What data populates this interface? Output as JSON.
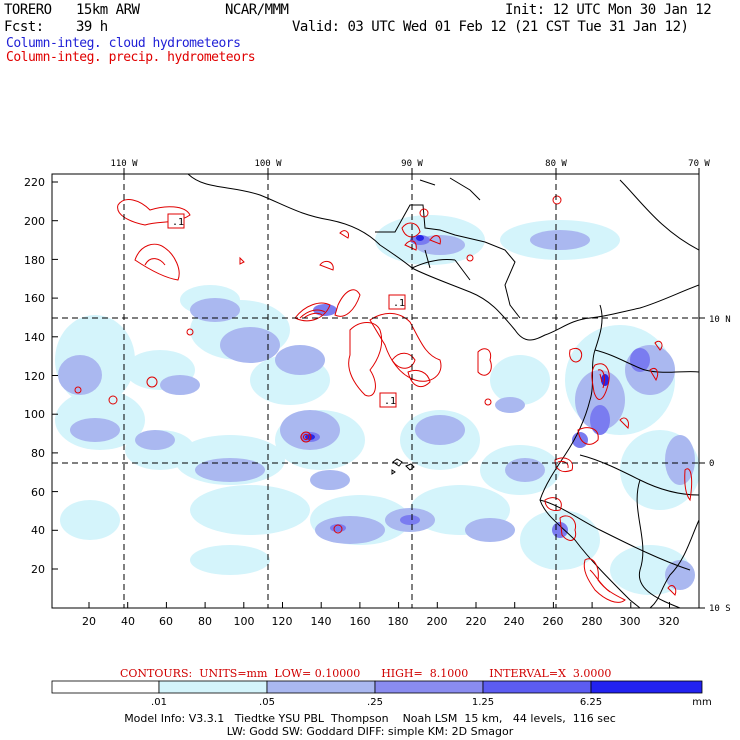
{
  "header": {
    "model": "TORERO",
    "resolution": "15km ARW",
    "center": "NCAR/MMM",
    "init": "Init: 12 UTC Mon 30 Jan 12",
    "fcst_label": "Fcst:",
    "fcst_hours": "39 h",
    "valid": "Valid: 03 UTC Wed 01 Feb 12 (21 CST Tue 31 Jan 12)"
  },
  "legend": {
    "cloud": "Column-integ. cloud hydrometeors",
    "precip": "Column-integ. precip. hydrometeors"
  },
  "map": {
    "lon_labels": [
      "110 W",
      "100 W",
      "90 W",
      "80 W",
      "70 W"
    ],
    "lat_labels": [
      "10 N",
      "0",
      "10 S"
    ],
    "y_ticks": [
      "220",
      "200",
      "180",
      "160",
      "140",
      "120",
      "100",
      "80",
      "60",
      "40",
      "20"
    ],
    "x_ticks": [
      "20",
      "40",
      "60",
      "80",
      "100",
      "120",
      "140",
      "160",
      "180",
      "200",
      "220",
      "240",
      "260",
      "280",
      "300",
      "320"
    ],
    "contour_labels": [
      ".1",
      ".1",
      ".1"
    ]
  },
  "contour_info": {
    "text": "CONTOURS:  UNITS=mm  LOW= 0.10000      HIGH=  8.1000      INTERVAL=X  3.0000"
  },
  "colorbar": {
    "labels": [
      ".01",
      ".05",
      ".25",
      "1.25",
      "6.25"
    ],
    "units": "mm",
    "colors": [
      "#ffffff",
      "#d4f4fb",
      "#aab8f0",
      "#8a8cf0",
      "#5c5cf2",
      "#2222f0"
    ]
  },
  "footer": {
    "line1": "Model Info: V3.3.1   Tiedtke YSU PBL  Thompson    Noah LSM  15 km,   44 levels,  116 sec",
    "line2": "LW: Godd SW: Goddard DIFF: simple KM: 2D Smagor"
  }
}
